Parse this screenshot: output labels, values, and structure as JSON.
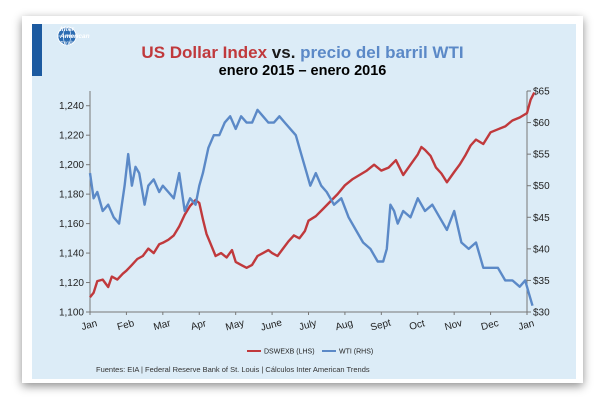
{
  "logo": {
    "line1": "Inter",
    "line2": "American",
    "line3": "Trends"
  },
  "title": {
    "part1": "US Dollar Index",
    "part2": " vs. ",
    "part3": "precio del barril WTI",
    "line2": "enero 2015 – enero 2016"
  },
  "source": "Fuentes: EIA | Federal Reserve Bank of St. Louis | Cálculos Inter American Trends",
  "colors": {
    "dollar": "#c0393c",
    "wti": "#5b89c7"
  },
  "chart_data": {
    "type": "line",
    "x_labels": [
      "Jan",
      "Feb",
      "Mar",
      "Apr",
      "May",
      "June",
      "July",
      "Aug",
      "Sept",
      "Oct",
      "Nov",
      "Dec",
      "Jan"
    ],
    "y_left": {
      "min": 1100,
      "max": 1250,
      "ticks": [
        "1,100",
        "1,120",
        "1,140",
        "1,160",
        "1,180",
        "1,200",
        "1,220",
        "1,240"
      ]
    },
    "y_right": {
      "min": 30,
      "max": 65,
      "ticks": [
        "$30",
        "$35",
        "$40",
        "$45",
        "$50",
        "$55",
        "$60",
        "$65"
      ]
    },
    "series": [
      {
        "name": "DSWEXB (LHS)",
        "axis": "left",
        "x": [
          0,
          0.1,
          0.2,
          0.35,
          0.5,
          0.6,
          0.75,
          0.9,
          1.0,
          1.15,
          1.3,
          1.45,
          1.6,
          1.75,
          1.9,
          2.0,
          2.15,
          2.3,
          2.45,
          2.6,
          2.75,
          2.9,
          3.0,
          3.1,
          3.2,
          3.3,
          3.45,
          3.6,
          3.75,
          3.9,
          4.0,
          4.15,
          4.3,
          4.45,
          4.6,
          4.75,
          4.9,
          5.0,
          5.15,
          5.3,
          5.45,
          5.6,
          5.75,
          5.9,
          6.0,
          6.2,
          6.4,
          6.6,
          6.8,
          7.0,
          7.2,
          7.4,
          7.6,
          7.8,
          8.0,
          8.2,
          8.4,
          8.6,
          8.8,
          9.0,
          9.1,
          9.2,
          9.35,
          9.5,
          9.65,
          9.8,
          10.0,
          10.15,
          10.3,
          10.45,
          10.6,
          10.8,
          11.0,
          11.2,
          11.4,
          11.6,
          11.8,
          12.0,
          12.1,
          12.2
        ],
        "values": [
          1110,
          1113,
          1121,
          1122,
          1117,
          1124,
          1122,
          1126,
          1128,
          1132,
          1136,
          1138,
          1143,
          1140,
          1146,
          1147,
          1149,
          1152,
          1158,
          1166,
          1172,
          1176,
          1174,
          1163,
          1153,
          1147,
          1138,
          1140,
          1137,
          1142,
          1134,
          1132,
          1130,
          1132,
          1138,
          1140,
          1142,
          1140,
          1138,
          1143,
          1148,
          1152,
          1150,
          1155,
          1162,
          1165,
          1170,
          1175,
          1180,
          1186,
          1190,
          1193,
          1196,
          1200,
          1196,
          1198,
          1203,
          1193,
          1200,
          1207,
          1212,
          1210,
          1206,
          1198,
          1194,
          1188,
          1195,
          1200,
          1206,
          1213,
          1217,
          1214,
          1222,
          1224,
          1226,
          1230,
          1232,
          1235,
          1244,
          1249
        ]
      },
      {
        "name": "WTI (RHS)",
        "axis": "right",
        "x": [
          0,
          0.1,
          0.2,
          0.35,
          0.5,
          0.65,
          0.8,
          0.95,
          1.05,
          1.15,
          1.25,
          1.35,
          1.5,
          1.6,
          1.75,
          1.9,
          2.0,
          2.15,
          2.3,
          2.45,
          2.6,
          2.75,
          2.9,
          3.0,
          3.1,
          3.25,
          3.4,
          3.55,
          3.7,
          3.85,
          4.0,
          4.15,
          4.3,
          4.45,
          4.6,
          4.75,
          4.9,
          5.05,
          5.2,
          5.35,
          5.5,
          5.65,
          5.8,
          5.95,
          6.05,
          6.2,
          6.35,
          6.5,
          6.7,
          6.9,
          7.1,
          7.3,
          7.5,
          7.7,
          7.9,
          8.05,
          8.15,
          8.25,
          8.35,
          8.45,
          8.6,
          8.8,
          9.0,
          9.2,
          9.4,
          9.6,
          9.8,
          10.0,
          10.2,
          10.4,
          10.6,
          10.8,
          11.0,
          11.2,
          11.4,
          11.6,
          11.8,
          11.95,
          12.05,
          12.15
        ],
        "values": [
          52,
          48,
          49,
          46,
          47,
          45,
          44,
          50,
          55,
          50,
          53,
          52,
          47,
          50,
          51,
          49,
          50,
          49,
          48,
          52,
          46,
          48,
          47,
          50,
          52,
          56,
          58,
          58,
          60,
          61,
          59,
          61,
          60,
          60,
          62,
          61,
          60,
          60,
          61,
          60,
          59,
          58,
          55,
          52,
          50,
          52,
          50,
          49,
          47,
          48,
          45,
          43,
          41,
          40,
          38,
          38,
          40,
          47,
          46,
          44,
          46,
          45,
          48,
          46,
          47,
          45,
          43,
          46,
          41,
          40,
          41,
          37,
          37,
          37,
          35,
          35,
          34,
          35,
          33,
          31
        ]
      }
    ]
  }
}
